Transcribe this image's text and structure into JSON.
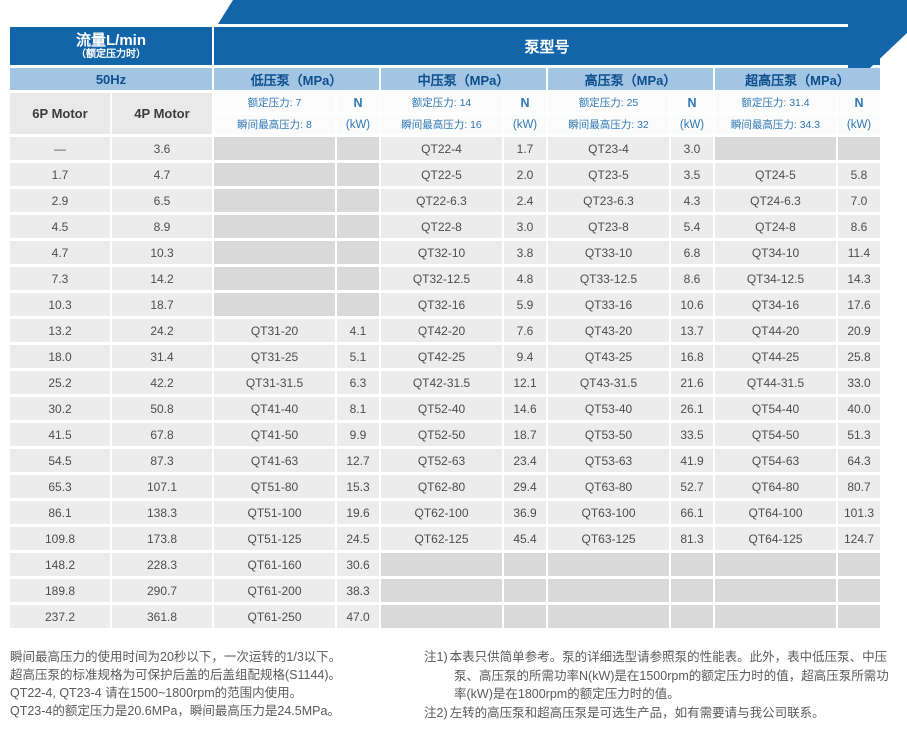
{
  "colors": {
    "header_dark_blue": "#1365a9",
    "header_light_blue": "#a2c5e4",
    "header_navy_text": "#0d4e8c",
    "accent_blue_text": "#2e78b5",
    "filled_cell_gray": "#ececec",
    "empty_cell_gray": "#d9d9d9"
  },
  "header": {
    "flow_title": "流量L/min",
    "flow_subtitle": "（额定压力时）",
    "pump_model_title": "泵型号",
    "frequency": "50Hz",
    "motor_columns": [
      "6P Motor",
      "4P Motor"
    ],
    "power_unit_top": "N",
    "power_unit_bottom": "(kW)",
    "groups": [
      {
        "name": "低压泵（MPa）",
        "rated": "额定压力: 7",
        "instant": "瞬间最高压力: 8"
      },
      {
        "name": "中压泵（MPa）",
        "rated": "额定压力: 14",
        "instant": "瞬间最高压力: 16"
      },
      {
        "name": "高压泵（MPa）",
        "rated": "额定压力: 25",
        "instant": "瞬间最高压力: 32"
      },
      {
        "name": "超高压泵（MPa）",
        "rated": "额定压力: 31.4",
        "instant": "瞬间最高压力: 34.3"
      }
    ]
  },
  "table": {
    "rows": [
      [
        "—",
        "3.6",
        "",
        "",
        "QT22-4",
        "1.7",
        "QT23-4",
        "3.0",
        "",
        ""
      ],
      [
        "1.7",
        "4.7",
        "",
        "",
        "QT22-5",
        "2.0",
        "QT23-5",
        "3.5",
        "QT24-5",
        "5.8"
      ],
      [
        "2.9",
        "6.5",
        "",
        "",
        "QT22-6.3",
        "2.4",
        "QT23-6.3",
        "4.3",
        "QT24-6.3",
        "7.0"
      ],
      [
        "4.5",
        "8.9",
        "",
        "",
        "QT22-8",
        "3.0",
        "QT23-8",
        "5.4",
        "QT24-8",
        "8.6"
      ],
      [
        "4.7",
        "10.3",
        "",
        "",
        "QT32-10",
        "3.8",
        "QT33-10",
        "6.8",
        "QT34-10",
        "11.4"
      ],
      [
        "7.3",
        "14.2",
        "",
        "",
        "QT32-12.5",
        "4.8",
        "QT33-12.5",
        "8.6",
        "QT34-12.5",
        "14.3"
      ],
      [
        "10.3",
        "18.7",
        "",
        "",
        "QT32-16",
        "5.9",
        "QT33-16",
        "10.6",
        "QT34-16",
        "17.6"
      ],
      [
        "13.2",
        "24.2",
        "QT31-20",
        "4.1",
        "QT42-20",
        "7.6",
        "QT43-20",
        "13.7",
        "QT44-20",
        "20.9"
      ],
      [
        "18.0",
        "31.4",
        "QT31-25",
        "5.1",
        "QT42-25",
        "9.4",
        "QT43-25",
        "16.8",
        "QT44-25",
        "25.8"
      ],
      [
        "25.2",
        "42.2",
        "QT31-31.5",
        "6.3",
        "QT42-31.5",
        "12.1",
        "QT43-31.5",
        "21.6",
        "QT44-31.5",
        "33.0"
      ],
      [
        "30.2",
        "50.8",
        "QT41-40",
        "8.1",
        "QT52-40",
        "14.6",
        "QT53-40",
        "26.1",
        "QT54-40",
        "40.0"
      ],
      [
        "41.5",
        "67.8",
        "QT41-50",
        "9.9",
        "QT52-50",
        "18.7",
        "QT53-50",
        "33.5",
        "QT54-50",
        "51.3"
      ],
      [
        "54.5",
        "87.3",
        "QT41-63",
        "12.7",
        "QT52-63",
        "23.4",
        "QT53-63",
        "41.9",
        "QT54-63",
        "64.3"
      ],
      [
        "65.3",
        "107.1",
        "QT51-80",
        "15.3",
        "QT62-80",
        "29.4",
        "QT63-80",
        "52.7",
        "QT64-80",
        "80.7"
      ],
      [
        "86.1",
        "138.3",
        "QT51-100",
        "19.6",
        "QT62-100",
        "36.9",
        "QT63-100",
        "66.1",
        "QT64-100",
        "101.3"
      ],
      [
        "109.8",
        "173.8",
        "QT51-125",
        "24.5",
        "QT62-125",
        "45.4",
        "QT63-125",
        "81.3",
        "QT64-125",
        "124.7"
      ],
      [
        "148.2",
        "228.3",
        "QT61-160",
        "30.6",
        "",
        "",
        "",
        "",
        "",
        ""
      ],
      [
        "189.8",
        "290.7",
        "QT61-200",
        "38.3",
        "",
        "",
        "",
        "",
        "",
        ""
      ],
      [
        "237.2",
        "361.8",
        "QT61-250",
        "47.0",
        "",
        "",
        "",
        "",
        "",
        ""
      ]
    ]
  },
  "notes": {
    "left": [
      "瞬间最高压力的使用时间为20秒以下，一次运转的1/3以下。",
      "超高压泵的标准规格为可保护后盖的后盖组配规格(S1144)。",
      "QT22-4, QT23-4 请在1500~1800rpm的范围内使用。",
      "QT23-4的额定压力是20.6MPa，瞬间最高压力是24.5MPa。"
    ],
    "right": [
      {
        "label": "注1)",
        "text": "本表只供简单参考。泵的详细选型请参照泵的性能表。此外，表中低压泵、中压泵、高压泵的所需功率N(kW)是在1500rpm的额定压力时的值，超高压泵所需功率(kW)是在1800rpm的额定压力时的值。"
      },
      {
        "label": "注2)",
        "text": "左转的高压泵和超高压泵是可选生产品，如有需要请与我公司联系。"
      }
    ]
  }
}
